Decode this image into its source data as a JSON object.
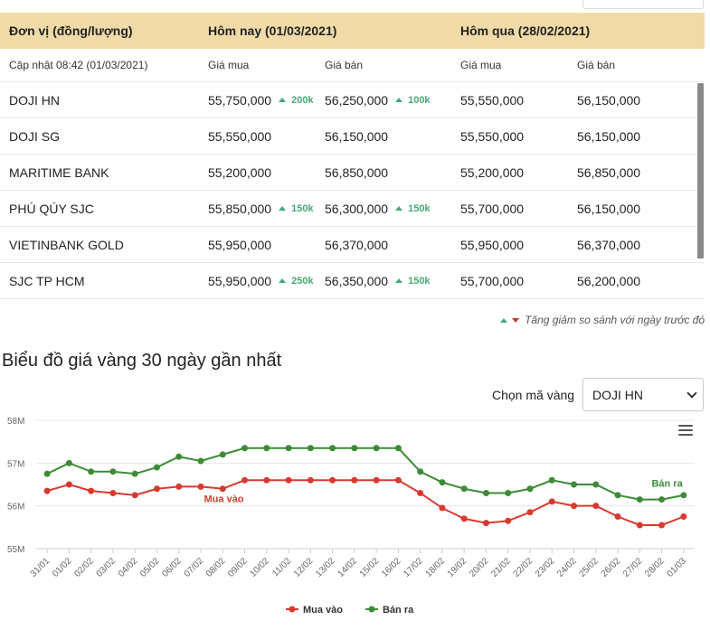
{
  "table": {
    "header": {
      "unit": "Đơn vị (đồng/lượng)",
      "today": "Hôm nay (01/03/2021)",
      "yesterday": "Hôm qua (28/02/2021)"
    },
    "subheader": {
      "updated": "Cập nhật 08:42 (01/03/2021)",
      "buy1": "Giá mua",
      "sell1": "Giá bán",
      "buy2": "Giá mua",
      "sell2": "Giá bán"
    },
    "rows": [
      {
        "name": "DOJI HN",
        "buy": "55,750,000",
        "buy_chg": "200k",
        "sell": "56,250,000",
        "sell_chg": "100k",
        "y_buy": "55,550,000",
        "y_sell": "56,150,000"
      },
      {
        "name": "DOJI SG",
        "buy": "55,550,000",
        "buy_chg": "",
        "sell": "56,150,000",
        "sell_chg": "",
        "y_buy": "55,550,000",
        "y_sell": "56,150,000"
      },
      {
        "name": "MARITIME BANK",
        "buy": "55,200,000",
        "buy_chg": "",
        "sell": "56,850,000",
        "sell_chg": "",
        "y_buy": "55,200,000",
        "y_sell": "56,850,000"
      },
      {
        "name": "PHÚ QÚY SJC",
        "buy": "55,850,000",
        "buy_chg": "150k",
        "sell": "56,300,000",
        "sell_chg": "150k",
        "y_buy": "55,700,000",
        "y_sell": "56,150,000"
      },
      {
        "name": "VIETINBANK GOLD",
        "buy": "55,950,000",
        "buy_chg": "",
        "sell": "56,370,000",
        "sell_chg": "",
        "y_buy": "55,950,000",
        "y_sell": "56,370,000"
      },
      {
        "name": "SJC TP HCM",
        "buy": "55,950,000",
        "buy_chg": "250k",
        "sell": "56,350,000",
        "sell_chg": "150k",
        "y_buy": "55,700,000",
        "y_sell": "56,200,000"
      }
    ]
  },
  "note": "Tăng giảm so sánh với ngày trước đó",
  "chart_title": "Biểu đồ giá vàng 30 ngày gần nhất",
  "selector": {
    "label": "Chọn mã vàng",
    "value": "DOJI HN"
  },
  "icons": [
    "arrow-up-icon",
    "arrow-down-icon",
    "chevron-down-icon",
    "menu-icon"
  ],
  "colors": {
    "header_bg": "#f0dba8",
    "up": "#44a978",
    "down": "#c0392b",
    "buy_series": "#d9392f",
    "sell_series": "#3d8b37"
  },
  "chart_data": {
    "type": "line",
    "x": [
      "31/01",
      "01/02",
      "02/02",
      "03/02",
      "04/02",
      "05/02",
      "06/02",
      "07/02",
      "08/02",
      "09/02",
      "10/02",
      "11/02",
      "12/02",
      "13/02",
      "14/02",
      "15/02",
      "16/02",
      "17/02",
      "18/02",
      "19/02",
      "20/02",
      "21/02",
      "22/02",
      "23/02",
      "24/02",
      "25/02",
      "26/02",
      "27/02",
      "28/02",
      "01/03"
    ],
    "series": [
      {
        "name": "Mua vào",
        "color": "#d9392f",
        "values": [
          56.35,
          56.5,
          56.35,
          56.3,
          56.25,
          56.4,
          56.45,
          56.45,
          56.4,
          56.6,
          56.6,
          56.6,
          56.6,
          56.6,
          56.6,
          56.6,
          56.6,
          56.3,
          55.95,
          55.7,
          55.6,
          55.65,
          55.85,
          56.1,
          56.0,
          56.0,
          55.75,
          55.55,
          55.55,
          55.75
        ]
      },
      {
        "name": "Bán ra",
        "color": "#3d8b37",
        "values": [
          56.75,
          57.0,
          56.8,
          56.8,
          56.75,
          56.9,
          57.15,
          57.05,
          57.2,
          57.35,
          57.35,
          57.35,
          57.35,
          57.35,
          57.35,
          57.35,
          57.35,
          56.8,
          56.55,
          56.4,
          56.3,
          56.3,
          56.4,
          56.6,
          56.5,
          56.5,
          56.25,
          56.15,
          56.15,
          56.25
        ]
      }
    ],
    "yticks": [
      "55M",
      "56M",
      "57M",
      "58M"
    ],
    "ylim": [
      55,
      58
    ],
    "series_labels": {
      "buy": "Mua vào",
      "sell": "Bán ra"
    },
    "legend": [
      {
        "name": "Mua vào",
        "color": "#d9392f"
      },
      {
        "name": "Bán ra",
        "color": "#3d8b37"
      }
    ],
    "legend_position": "bottom-center",
    "grid": "horizontal"
  }
}
